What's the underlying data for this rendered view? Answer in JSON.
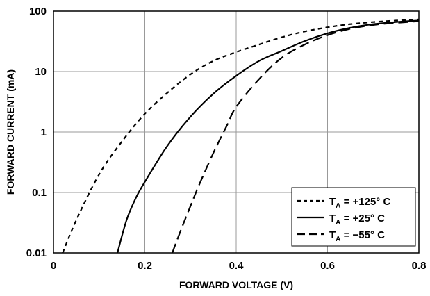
{
  "chart_data": {
    "type": "line",
    "title": "",
    "xlabel": "FORWARD VOLTAGE (V)",
    "ylabel": "FORWARD CURRENT (mA)",
    "xlim": [
      0,
      0.8
    ],
    "ylim": [
      0.01,
      100
    ],
    "yscale": "log",
    "grid": true,
    "legend_position": "bottom-right",
    "x_ticks": [
      {
        "value": 0,
        "label": "0"
      },
      {
        "value": 0.2,
        "label": "0.2"
      },
      {
        "value": 0.4,
        "label": "0.4"
      },
      {
        "value": 0.6,
        "label": "0.6"
      },
      {
        "value": 0.8,
        "label": "0.8"
      }
    ],
    "y_ticks": [
      {
        "value": 0.01,
        "label": "0.01"
      },
      {
        "value": 0.1,
        "label": "0.1"
      },
      {
        "value": 1,
        "label": "1"
      },
      {
        "value": 10,
        "label": "10"
      },
      {
        "value": 100,
        "label": "100"
      }
    ],
    "series": [
      {
        "legend_symbol": "T",
        "legend_subscript": "A",
        "legend_value": " = +125° C",
        "line_style": "short-dash",
        "color": "#000000",
        "x": [
          0.02,
          0.05,
          0.1,
          0.15,
          0.2,
          0.25,
          0.3,
          0.35,
          0.4,
          0.45,
          0.5,
          0.55,
          0.6,
          0.65,
          0.7,
          0.75,
          0.8
        ],
        "y": [
          0.01,
          0.035,
          0.2,
          0.7,
          2.0,
          4.5,
          9.0,
          15.0,
          21.0,
          28.0,
          37.0,
          46.0,
          54.0,
          61.0,
          66.0,
          70.0,
          73.0
        ]
      },
      {
        "legend_symbol": "T",
        "legend_subscript": "A",
        "legend_value": " = +25° C",
        "line_style": "solid",
        "color": "#000000",
        "x": [
          0.14,
          0.16,
          0.18,
          0.2,
          0.25,
          0.3,
          0.35,
          0.4,
          0.45,
          0.5,
          0.55,
          0.6,
          0.65,
          0.7,
          0.75,
          0.8
        ],
        "y": [
          0.01,
          0.035,
          0.08,
          0.15,
          0.6,
          1.8,
          4.3,
          8.5,
          15.0,
          22.0,
          32.0,
          43.0,
          53.0,
          61.0,
          66.0,
          70.0
        ]
      },
      {
        "legend_symbol": "T",
        "legend_subscript": "A",
        "legend_value": " = −55° C",
        "line_style": "long-dash",
        "color": "#000000",
        "x": [
          0.26,
          0.28,
          0.3,
          0.32,
          0.35,
          0.38,
          0.4,
          0.45,
          0.5,
          0.55,
          0.6,
          0.65,
          0.7,
          0.75,
          0.8
        ],
        "y": [
          0.01,
          0.025,
          0.06,
          0.14,
          0.45,
          1.3,
          2.6,
          7.5,
          17.0,
          28.0,
          40.0,
          51.0,
          59.0,
          64.0,
          68.0
        ]
      }
    ]
  }
}
